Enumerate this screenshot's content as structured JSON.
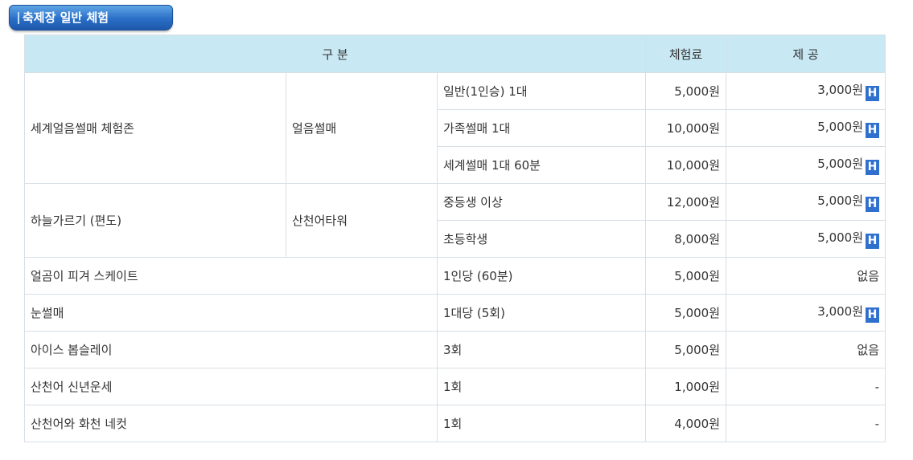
{
  "section_title": "축제장 일반 체험",
  "headers": {
    "category": "구 분",
    "fee": "체험료",
    "offer": "제 공"
  },
  "badge_letter": "H",
  "rows": [
    {
      "name": "세계얼음썰매 체험존",
      "place": "얼음썰매",
      "item": "일반(1인승) 1대",
      "fee": "5,000원",
      "offer": "3,000원",
      "badge": true
    },
    {
      "item": "가족썰매 1대",
      "fee": "10,000원",
      "offer": "5,000원",
      "badge": true
    },
    {
      "item": "세계썰매 1대 60분",
      "fee": "10,000원",
      "offer": "5,000원",
      "badge": true
    },
    {
      "name": "하늘가르기 (편도)",
      "place": "산천어타워",
      "item": "중등생 이상",
      "fee": "12,000원",
      "offer": "5,000원",
      "badge": true
    },
    {
      "item": "초등학생",
      "fee": "8,000원",
      "offer": "5,000원",
      "badge": true
    },
    {
      "name": "얼곰이 피겨 스케이트",
      "item": "1인당 (60분)",
      "fee": "5,000원",
      "offer": "없음",
      "badge": false
    },
    {
      "name": "눈썰매",
      "item": "1대당 (5회)",
      "fee": "5,000원",
      "offer": "3,000원",
      "badge": true
    },
    {
      "name": "아이스 봅슬레이",
      "item": "3회",
      "fee": "5,000원",
      "offer": "없음",
      "badge": false
    },
    {
      "name": "산천어 신년운세",
      "item": "1회",
      "fee": "1,000원",
      "offer": "-",
      "badge": false
    },
    {
      "name": "산천어와 화천 네컷",
      "item": "1회",
      "fee": "4,000원",
      "offer": "-",
      "badge": false
    }
  ]
}
